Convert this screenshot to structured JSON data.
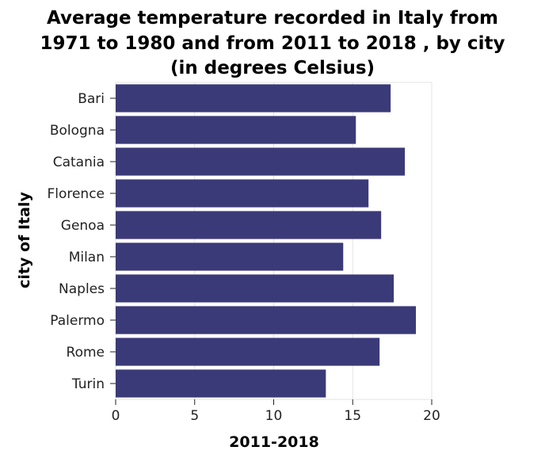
{
  "chart_data": {
    "type": "bar",
    "orientation": "horizontal",
    "title_lines": [
      "Average temperature recorded in Italy from",
      "1971 to 1980 and from 2011 to 2018 , by city",
      "(in degrees Celsius)"
    ],
    "xlabel": "2011-2018",
    "ylabel": "city of Italy",
    "categories": [
      "Bari",
      "Bologna",
      "Catania",
      "Florence",
      "Genoa",
      "Milan",
      "Naples",
      "Palermo",
      "Rome",
      "Turin"
    ],
    "series": [
      {
        "values": [
          17.4,
          15.2,
          18.3,
          16.0,
          16.8,
          14.4,
          17.6,
          19.0,
          16.7,
          13.3
        ]
      }
    ],
    "xlim": [
      0,
      20
    ],
    "xticks": [
      0,
      5,
      10,
      15,
      20
    ],
    "grid": true,
    "legend": "none",
    "colors": {
      "bar": "#3b3a78",
      "grid": "#e3e3e3"
    }
  }
}
